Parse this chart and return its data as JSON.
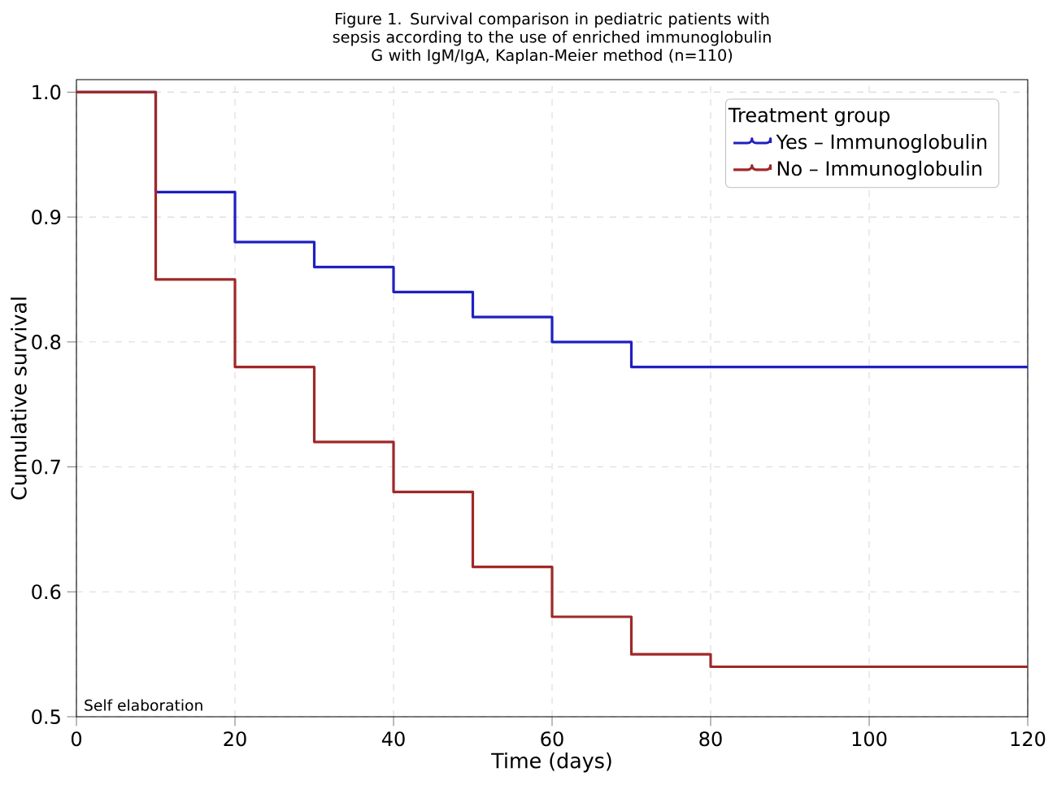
{
  "chart_data": {
    "type": "step",
    "title": "Figure 1. Survival comparison in pediatric patients with sepsis according to the use of enriched immunoglobulin G with IgM/IgA, Kaplan-Meier method (n=110)",
    "xlabel": "Time (days)",
    "ylabel": "Cumulative survival",
    "legend_title": "Treatment group",
    "annotations": [
      "Self elaboration"
    ],
    "xlim": [
      0,
      120
    ],
    "xticks": [
      0,
      20,
      40,
      60,
      80,
      100,
      120
    ],
    "ylim": [
      0.5,
      1.01
    ],
    "yticks": [
      {
        "value": 0.5,
        "label": "0.5"
      },
      {
        "value": 0.6,
        "label": "0.6"
      },
      {
        "value": 0.7,
        "label": "0.7"
      },
      {
        "value": 0.8,
        "label": "0.8"
      },
      {
        "value": 0.9,
        "label": "0.9"
      },
      {
        "value": 1.0,
        "label": "1.0"
      }
    ],
    "grid": true,
    "legend": "top right",
    "series": [
      {
        "name": "Yes – Immunoglobulin",
        "color": "#2020c0",
        "x": [
          0,
          10,
          20,
          30,
          40,
          50,
          60,
          70,
          120
        ],
        "values": [
          1.0,
          0.92,
          0.88,
          0.86,
          0.84,
          0.82,
          0.8,
          0.78,
          0.78
        ]
      },
      {
        "name": "No – Immunoglobulin",
        "color": "#a02828",
        "x": [
          0,
          10,
          20,
          30,
          40,
          50,
          60,
          70,
          80,
          120
        ],
        "values": [
          1.0,
          0.85,
          0.78,
          0.72,
          0.68,
          0.62,
          0.58,
          0.55,
          0.54,
          0.54
        ]
      }
    ]
  }
}
